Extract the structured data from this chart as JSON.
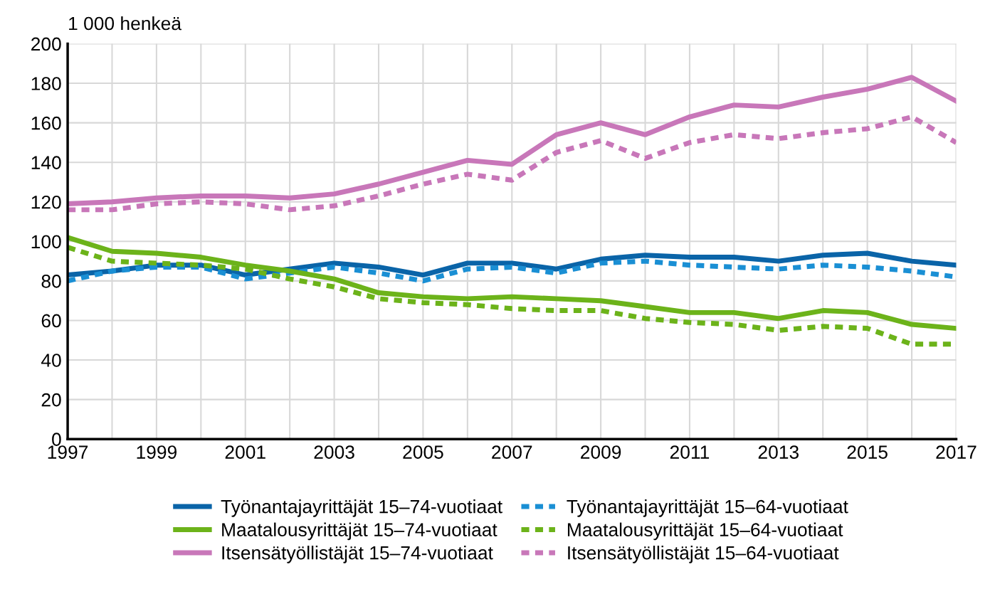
{
  "chart_data": {
    "type": "line",
    "ylabel": "1 000 henkeä",
    "x": [
      1997,
      1998,
      1999,
      2000,
      2001,
      2002,
      2003,
      2004,
      2005,
      2006,
      2007,
      2008,
      2009,
      2010,
      2011,
      2012,
      2013,
      2014,
      2015,
      2016,
      2017
    ],
    "series": [
      {
        "name": "Työnantajayrittäjät 15–74-vuotiaat",
        "color": "#0a64a8",
        "line_style": "solid",
        "values": [
          83,
          85,
          88,
          88,
          83,
          86,
          89,
          87,
          83,
          89,
          89,
          86,
          91,
          93,
          92,
          92,
          90,
          93,
          94,
          90,
          88
        ]
      },
      {
        "name": "Työnantajayrittäjät 15–64-vuotiaat",
        "color": "#1a8fd4",
        "line_style": "dashed",
        "values": [
          80,
          85,
          87,
          87,
          81,
          84,
          87,
          84,
          80,
          86,
          87,
          84,
          89,
          90,
          88,
          87,
          86,
          88,
          87,
          85,
          82
        ]
      },
      {
        "name": "Maatalousyrittäjät 15–74-vuotiaat",
        "color": "#6cb31a",
        "line_style": "solid",
        "values": [
          102,
          95,
          94,
          92,
          88,
          85,
          81,
          74,
          72,
          71,
          72,
          71,
          70,
          67,
          64,
          64,
          61,
          65,
          64,
          58,
          56
        ]
      },
      {
        "name": "Maatalousyrittäjät 15–64-vuotiaat",
        "color": "#6cb31a",
        "line_style": "dashed",
        "values": [
          97,
          90,
          89,
          88,
          86,
          81,
          77,
          71,
          69,
          68,
          66,
          65,
          65,
          61,
          59,
          58,
          55,
          57,
          56,
          48,
          48
        ]
      },
      {
        "name": "Itsensätyöllistäjät 15–74-vuotiaat",
        "color": "#c877b9",
        "line_style": "solid",
        "values": [
          119,
          120,
          122,
          123,
          123,
          122,
          124,
          129,
          135,
          141,
          139,
          154,
          160,
          154,
          163,
          169,
          168,
          173,
          177,
          183,
          171
        ]
      },
      {
        "name": "Itsensätyöllistäjät 15–64-vuotiaat",
        "color": "#c877b9",
        "line_style": "dashed",
        "values": [
          116,
          116,
          119,
          120,
          119,
          116,
          118,
          123,
          129,
          134,
          131,
          145,
          151,
          142,
          150,
          154,
          152,
          155,
          157,
          163,
          150
        ]
      }
    ],
    "xlim": [
      1997,
      2017
    ],
    "xticks": [
      1997,
      {
        "value": 1998,
        "label": null
      },
      1999,
      {
        "value": 2000,
        "label": null
      },
      2001,
      {
        "value": 2002,
        "label": null
      },
      2003,
      {
        "value": 2004,
        "label": null
      },
      2005,
      {
        "value": 2006,
        "label": null
      },
      2007,
      {
        "value": 2008,
        "label": null
      },
      2009,
      {
        "value": 2010,
        "label": null
      },
      2011,
      {
        "value": 2012,
        "label": null
      },
      2013,
      {
        "value": 2014,
        "label": null
      },
      2015,
      {
        "value": 2016,
        "label": null
      },
      2017
    ],
    "ylim": [
      0,
      200
    ],
    "yticks": [
      0,
      20,
      40,
      60,
      80,
      100,
      120,
      140,
      160,
      180,
      200
    ],
    "grid": true,
    "legend": "bottom",
    "marker": "none"
  }
}
